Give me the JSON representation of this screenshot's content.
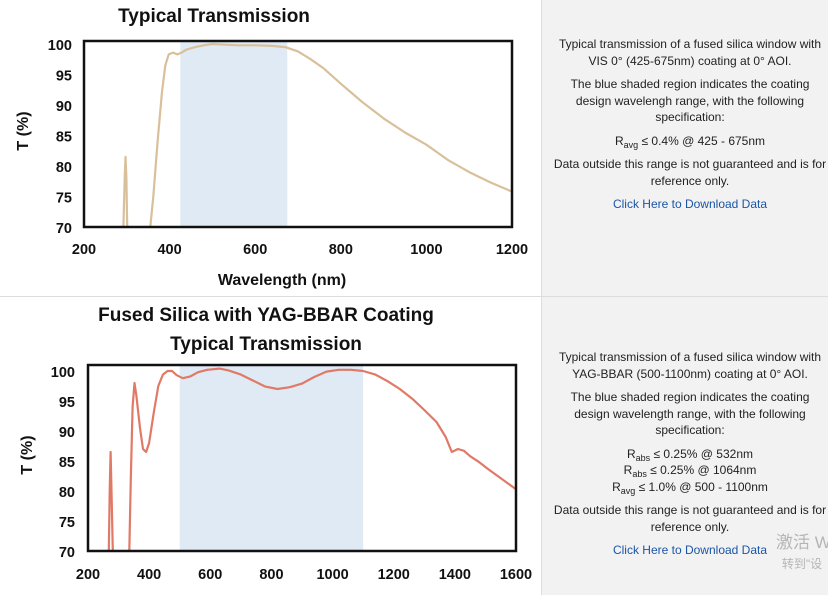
{
  "chart_data": [
    {
      "type": "line",
      "title": [
        "Typical Transmission"
      ],
      "xlabel": "Wavelength (nm)",
      "ylabel": "T (%)",
      "xlim": [
        200,
        1200
      ],
      "ylim": [
        70,
        100.5
      ],
      "xticks": [
        "200",
        "400",
        "600",
        "800",
        "1000",
        "1200"
      ],
      "yticks": [
        "70",
        "75",
        "80",
        "85",
        "90",
        "95",
        "100"
      ],
      "shaded_range": [
        425,
        675
      ],
      "line_color": "#d9c09a",
      "shade_color": "#dfeaf5",
      "series": [
        {
          "name": "Transmission",
          "segments": [
            [
              [
                292,
                70
              ],
              [
                295,
                78
              ],
              [
                297,
                81.5
              ],
              [
                299,
                78
              ],
              [
                301,
                70
              ]
            ],
            [
              [
                355,
                70
              ],
              [
                362,
                75
              ],
              [
                372,
                84
              ],
              [
                382,
                92
              ],
              [
                390,
                96.5
              ],
              [
                398,
                98.3
              ],
              [
                408,
                98.6
              ],
              [
                418,
                98.3
              ],
              [
                428,
                98.6
              ],
              [
                440,
                99.1
              ],
              [
                460,
                99.5
              ],
              [
                480,
                99.8
              ],
              [
                500,
                100
              ],
              [
                530,
                99.9
              ],
              [
                560,
                99.8
              ],
              [
                600,
                99.8
              ],
              [
                640,
                99.7
              ],
              [
                670,
                99.5
              ],
              [
                700,
                98.8
              ],
              [
                730,
                97.5
              ],
              [
                760,
                96
              ],
              [
                800,
                93.5
              ],
              [
                850,
                90.5
              ],
              [
                900,
                87.8
              ],
              [
                950,
                85.5
              ],
              [
                1000,
                83.5
              ],
              [
                1050,
                81
              ],
              [
                1100,
                79
              ],
              [
                1150,
                77.3
              ],
              [
                1200,
                75.8
              ]
            ]
          ]
        }
      ]
    },
    {
      "type": "line",
      "title": [
        "Fused Silica with YAG-BBAR Coating",
        "Typical Transmission"
      ],
      "xlabel": "",
      "ylabel": "T (%)",
      "xlim": [
        200,
        1600
      ],
      "ylim": [
        70,
        101
      ],
      "xticks": [
        "200",
        "400",
        "600",
        "800",
        "1000",
        "1200",
        "1400",
        "1600"
      ],
      "yticks": [
        "70",
        "75",
        "80",
        "85",
        "90",
        "95",
        "100"
      ],
      "shaded_range": [
        500,
        1100
      ],
      "line_color": "#e07a66",
      "shade_color": "#dfeaf5",
      "series": [
        {
          "name": "Transmission",
          "segments": [
            [
              [
                268,
                70
              ],
              [
                271,
                80
              ],
              [
                274,
                86.5
              ],
              [
                277,
                80
              ],
              [
                281,
                70
              ]
            ],
            [
              [
                335,
                70
              ],
              [
                340,
                82
              ],
              [
                346,
                94
              ],
              [
                352,
                98
              ],
              [
                358,
                96
              ],
              [
                370,
                90.5
              ],
              [
                380,
                87
              ],
              [
                390,
                86.5
              ],
              [
                400,
                88
              ],
              [
                415,
                93
              ],
              [
                430,
                97.5
              ],
              [
                445,
                99.4
              ],
              [
                460,
                100
              ],
              [
                475,
                100
              ],
              [
                490,
                99.3
              ],
              [
                510,
                98.8
              ],
              [
                535,
                99.1
              ],
              [
                560,
                99.8
              ],
              [
                590,
                100.2
              ],
              [
                630,
                100.4
              ],
              [
                660,
                100.1
              ],
              [
                700,
                99.4
              ],
              [
                740,
                98.4
              ],
              [
                780,
                97.4
              ],
              [
                820,
                97
              ],
              [
                860,
                97.3
              ],
              [
                900,
                97.9
              ],
              [
                940,
                99
              ],
              [
                980,
                99.9
              ],
              [
                1020,
                100.2
              ],
              [
                1060,
                100.2
              ],
              [
                1100,
                100
              ],
              [
                1140,
                99.4
              ],
              [
                1180,
                98.3
              ],
              [
                1220,
                97
              ],
              [
                1260,
                95.4
              ],
              [
                1300,
                93.5
              ],
              [
                1340,
                91.5
              ],
              [
                1370,
                89
              ],
              [
                1390,
                86.5
              ],
              [
                1410,
                87
              ],
              [
                1430,
                86.7
              ],
              [
                1450,
                85.8
              ],
              [
                1480,
                84.8
              ],
              [
                1510,
                83.6
              ],
              [
                1540,
                82.5
              ],
              [
                1570,
                81.4
              ],
              [
                1600,
                80.3
              ]
            ]
          ]
        }
      ]
    }
  ],
  "info1": {
    "description": "Typical transmission of a fused silica window with VIS 0° (425-675nm) coating at 0° AOI.",
    "shaded_note": "The blue shaded region indicates the coating design wavelengh range, with the following specification:",
    "specs": [
      {
        "main": "R",
        "sub": "avg",
        "rest": " ≤ 0.4% @ 425 - 675nm"
      }
    ],
    "disclaimer": "Data outside this range is not guaranteed and is for reference only.",
    "link": "Click Here to Download Data"
  },
  "info2": {
    "description": "Typical transmission of a fused silica window with YAG-BBAR (500-1100nm) coating at 0° AOI.",
    "shaded_note": "The blue shaded region indicates the coating design wavelength range, with the following specification:",
    "specs": [
      {
        "main": "R",
        "sub": "abs",
        "rest": " ≤ 0.25% @ 532nm"
      },
      {
        "main": "R",
        "sub": "abs",
        "rest": " ≤ 0.25% @ 1064nm"
      },
      {
        "main": "R",
        "sub": "avg",
        "rest": " ≤ 1.0% @ 500 - 1100nm"
      }
    ],
    "disclaimer": "Data outside this range is not guaranteed and is for reference only.",
    "link": "Click Here to Download Data"
  },
  "watermark": {
    "line1": "激活 W",
    "line2": "转到\"设"
  }
}
